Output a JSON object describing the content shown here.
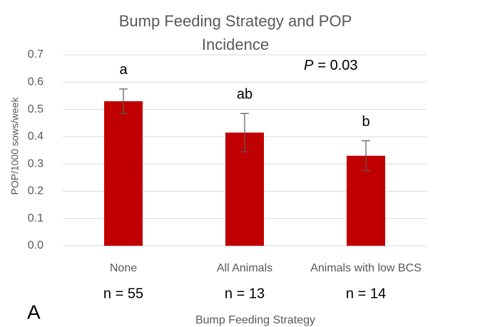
{
  "chart_data": {
    "type": "bar",
    "title": "Bump Feeding Strategy and POP Incidence",
    "x_label": "Bump Feeding Strategy",
    "y_label": "POP/1000 sows/week",
    "categories": [
      "None",
      "All Animals",
      "Animals with low BCS"
    ],
    "values": [
      0.53,
      0.415,
      0.33
    ],
    "errors": [
      0.045,
      0.07,
      0.055
    ],
    "color": "#c00000",
    "ylim": [
      0,
      0.7
    ],
    "yticks": [
      {
        "value": 0,
        "label": "0.0"
      },
      0.1,
      0.2,
      0.3,
      0.4,
      0.5,
      0.6,
      0.7
    ],
    "grid": true,
    "letters": [
      "a",
      "ab",
      "b"
    ],
    "n_labels": [
      "n = 55",
      "n = 13",
      "n = 14"
    ],
    "p_value": {
      "symbol": "P",
      "text": "= 0.03"
    },
    "panel_label": "A"
  }
}
